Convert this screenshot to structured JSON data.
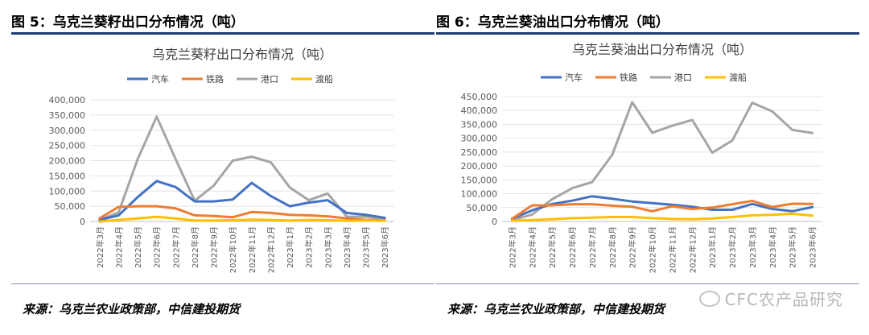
{
  "figures": [
    {
      "fig_title": "图 5：乌克兰葵籽出口分布情况（吨）",
      "source": "来源：乌克兰农业政策部，中信建投期货"
    },
    {
      "fig_title": "图 6：乌克兰葵油出口分布情况（吨）",
      "source": "来源：乌克兰农业政策部，中信建投期货"
    }
  ],
  "watermark": "CFC农产品研究",
  "colors": {
    "rule": "#1f3b6e",
    "series": [
      "#4472c4",
      "#ed7d31",
      "#a5a5a5",
      "#ffc000"
    ]
  },
  "chart_data": [
    {
      "type": "line",
      "title": "乌克兰葵籽出口分布情况（吨）",
      "categories": [
        "2022年3月",
        "2022年4月",
        "2022年5月",
        "2022年6月",
        "2022年7月",
        "2022年8月",
        "2022年9月",
        "2022年10月",
        "2022年11月",
        "2022年12月",
        "2023年1月",
        "2023年2月",
        "2023年3月",
        "2023年4月",
        "2023年5月",
        "2023年6月"
      ],
      "ylim": [
        0,
        400000
      ],
      "yticks": [
        "0",
        "50,000",
        "100,000",
        "150,000",
        "200,000",
        "250,000",
        "300,000",
        "350,000",
        "400,000"
      ],
      "legend_position": "top",
      "grid": true,
      "series": [
        {
          "name": "汽车",
          "values": [
            5000,
            20000,
            80000,
            133000,
            113000,
            66000,
            66000,
            72000,
            127000,
            84000,
            50000,
            62000,
            70000,
            28000,
            22000,
            12000
          ]
        },
        {
          "name": "铁路",
          "values": [
            10000,
            48000,
            50000,
            50000,
            43000,
            20000,
            18000,
            14000,
            31000,
            28000,
            22000,
            20000,
            17000,
            10000,
            5000,
            3000
          ]
        },
        {
          "name": "港口",
          "values": [
            5000,
            30000,
            205000,
            345000,
            205000,
            68000,
            118000,
            200000,
            213000,
            195000,
            112000,
            70000,
            92000,
            16000,
            15000,
            8000
          ]
        },
        {
          "name": "渡船",
          "values": [
            0,
            5000,
            10000,
            15000,
            10000,
            3000,
            3000,
            4000,
            6000,
            5000,
            3000,
            5000,
            4000,
            2000,
            3000,
            2000
          ]
        }
      ]
    },
    {
      "type": "line",
      "title": "乌克兰葵油出口分布情况（吨）",
      "categories": [
        "2022年3月",
        "2022年4月",
        "2022年5月",
        "2022年6月",
        "2022年7月",
        "2022年8月",
        "2022年9月",
        "2022年10月",
        "2022年11月",
        "2022年12月",
        "2023年1月",
        "2023年2月",
        "2023年3月",
        "2023年4月",
        "2023年5月",
        "2023年6月"
      ],
      "ylim": [
        0,
        450000
      ],
      "yticks": [
        "0",
        "50,000",
        "100,000",
        "150,000",
        "200,000",
        "250,000",
        "300,000",
        "350,000",
        "400,000",
        "450,000"
      ],
      "legend_position": "top",
      "grid": true,
      "series": [
        {
          "name": "汽车",
          "values": [
            10000,
            40000,
            63000,
            75000,
            91000,
            82000,
            72000,
            66000,
            60000,
            53000,
            42000,
            42000,
            63000,
            45000,
            37000,
            52000
          ]
        },
        {
          "name": "铁路",
          "values": [
            10000,
            58000,
            58000,
            62000,
            62000,
            57000,
            53000,
            37000,
            55000,
            45000,
            50000,
            62000,
            74000,
            52000,
            64000,
            63000
          ]
        },
        {
          "name": "港口",
          "values": [
            5000,
            25000,
            80000,
            120000,
            142000,
            240000,
            430000,
            320000,
            345000,
            366000,
            248000,
            292000,
            428000,
            397000,
            330000,
            319000
          ]
        },
        {
          "name": "渡船",
          "values": [
            2000,
            5000,
            8000,
            12000,
            14000,
            16000,
            16000,
            12000,
            9000,
            8000,
            11000,
            16000,
            22000,
            24000,
            28000,
            21000
          ]
        }
      ]
    }
  ]
}
